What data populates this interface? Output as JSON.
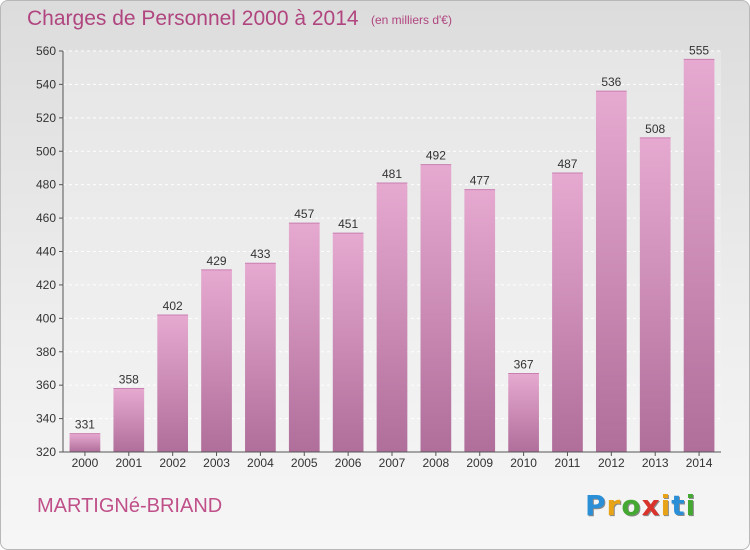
{
  "header": {
    "title": "Charges de Personnel 2000 à 2014",
    "subtitle": "(en milliers d'€)"
  },
  "footer": {
    "city": "MARTIGNé-BRIAND",
    "logo_letters": [
      "P",
      "r",
      "o",
      "x",
      "i",
      "t",
      "i"
    ]
  },
  "colors": {
    "bar_top": "#e6a9d0",
    "bar_bottom": "#b06e9a",
    "text_accent": "#b0457f",
    "logo": [
      "#2b8fd8",
      "#e8a317",
      "#45a832",
      "#d9342b",
      "#e8a317",
      "#2b8fd8",
      "#45a832"
    ]
  },
  "chart_data": {
    "type": "bar",
    "title": "Charges de Personnel 2000 à 2014",
    "subtitle": "(en milliers d'€)",
    "categories": [
      "2000",
      "2001",
      "2002",
      "2003",
      "2004",
      "2005",
      "2006",
      "2007",
      "2008",
      "2009",
      "2010",
      "2011",
      "2012",
      "2013",
      "2014"
    ],
    "values": [
      331,
      358,
      402,
      429,
      433,
      457,
      451,
      481,
      492,
      477,
      367,
      487,
      536,
      508,
      555
    ],
    "ylim": [
      320,
      560
    ],
    "yticks": [
      320,
      340,
      360,
      380,
      400,
      420,
      440,
      460,
      480,
      500,
      520,
      540,
      560
    ],
    "grid": true,
    "xlabel": "",
    "ylabel": ""
  }
}
